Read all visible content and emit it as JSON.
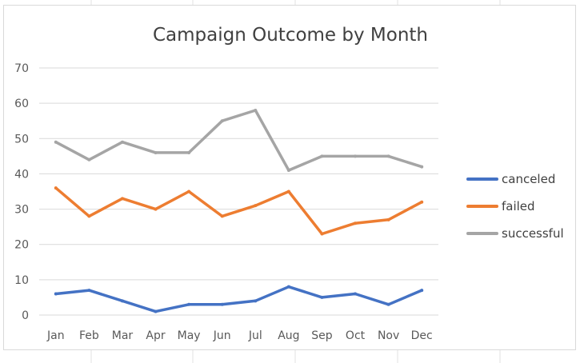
{
  "chart_data": {
    "type": "line",
    "title": "Campaign Outcome by Month",
    "xlabel": "",
    "ylabel": "",
    "categories": [
      "Jan",
      "Feb",
      "Mar",
      "Apr",
      "May",
      "Jun",
      "Jul",
      "Aug",
      "Sep",
      "Oct",
      "Nov",
      "Dec"
    ],
    "ylim": [
      0,
      70
    ],
    "yticks": [
      "0",
      "10",
      "20",
      "30",
      "40",
      "50",
      "60",
      "70"
    ],
    "grid": true,
    "legend_position": "right",
    "series": [
      {
        "name": "canceled",
        "color": "#4472C4",
        "values": [
          6,
          7,
          4,
          1,
          3,
          3,
          4,
          8,
          5,
          6,
          3,
          7
        ]
      },
      {
        "name": "failed",
        "color": "#ED7D31",
        "values": [
          36,
          28,
          33,
          30,
          35,
          28,
          31,
          35,
          23,
          26,
          27,
          32
        ]
      },
      {
        "name": "successful",
        "color": "#A5A5A5",
        "values": [
          49,
          44,
          49,
          46,
          46,
          55,
          58,
          41,
          45,
          45,
          45,
          42
        ]
      }
    ]
  }
}
